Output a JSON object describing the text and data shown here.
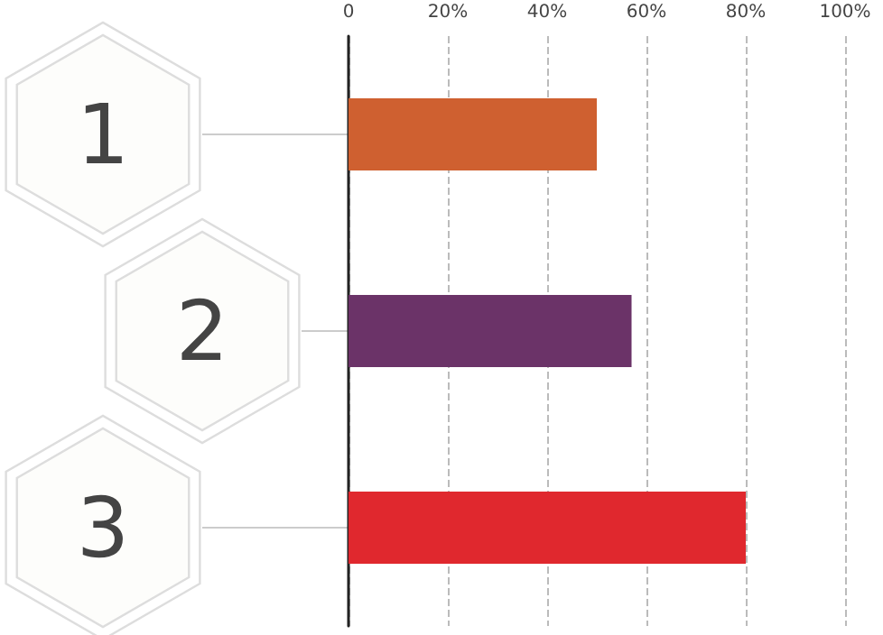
{
  "chart_data": {
    "type": "bar",
    "orientation": "horizontal",
    "categories": [
      "1",
      "2",
      "3"
    ],
    "values": [
      50,
      57,
      80
    ],
    "colors": [
      "#cf6030",
      "#6b3368",
      "#e0282e"
    ],
    "xlim": [
      0,
      100
    ],
    "xticks": [
      {
        "value": 0,
        "label": "0"
      },
      {
        "value": 20,
        "label": "20%"
      },
      {
        "value": 40,
        "label": "40%"
      },
      {
        "value": 60,
        "label": "60%"
      },
      {
        "value": 80,
        "label": "80%"
      },
      {
        "value": 100,
        "label": "100%"
      }
    ],
    "grid": "x"
  }
}
